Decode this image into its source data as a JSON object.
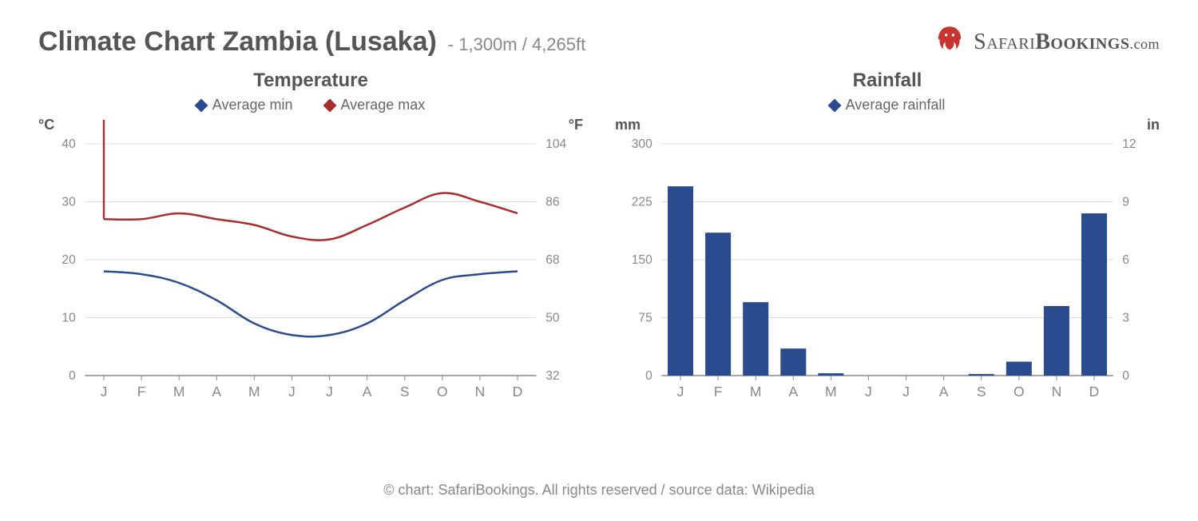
{
  "header": {
    "title": "Climate Chart Zambia (Lusaka)",
    "subtitle": "- 1,300m / 4,265ft",
    "logo_text_1": "Safari",
    "logo_text_2": "Bookings",
    "logo_text_3": ".com",
    "logo_color": "#c8342f"
  },
  "months": [
    "J",
    "F",
    "M",
    "A",
    "M",
    "J",
    "J",
    "A",
    "S",
    "O",
    "N",
    "D"
  ],
  "temperature": {
    "title": "Temperature",
    "legend_min": "Average min",
    "legend_max": "Average max",
    "y_left_label": "°C",
    "y_right_label": "°F",
    "y_left_ticks": [
      0,
      10,
      20,
      30,
      40
    ],
    "y_right_ticks": [
      32,
      50,
      68,
      86,
      104
    ],
    "ylim": [
      0,
      40
    ],
    "min_series": [
      18,
      17.5,
      16,
      13,
      9,
      7,
      7,
      9,
      13,
      16.5,
      17.5,
      18
    ],
    "max_series": [
      27,
      27,
      28,
      27,
      26,
      24,
      23.5,
      26,
      29,
      31.5,
      30,
      28
    ],
    "min_color": "#2a4b8d",
    "max_color": "#a82e2e",
    "line_width": 2.5,
    "grid_color": "#dcdcdc",
    "baseline_color": "#888888",
    "background": "#ffffff"
  },
  "rainfall": {
    "title": "Rainfall",
    "legend_label": "Average rainfall",
    "y_left_label": "mm",
    "y_right_label": "in",
    "y_left_ticks": [
      0,
      75,
      150,
      225,
      300
    ],
    "y_right_ticks": [
      0,
      3,
      6,
      9,
      12
    ],
    "ylim": [
      0,
      300
    ],
    "values": [
      245,
      185,
      95,
      35,
      3,
      0,
      0,
      0,
      2,
      18,
      90,
      210
    ],
    "bar_color": "#2a4b8d",
    "bar_width": 0.68,
    "grid_color": "#dcdcdc",
    "baseline_color": "#888888",
    "background": "#ffffff"
  },
  "footer": "© chart: SafariBookings. All rights reserved / source data: Wikipedia"
}
